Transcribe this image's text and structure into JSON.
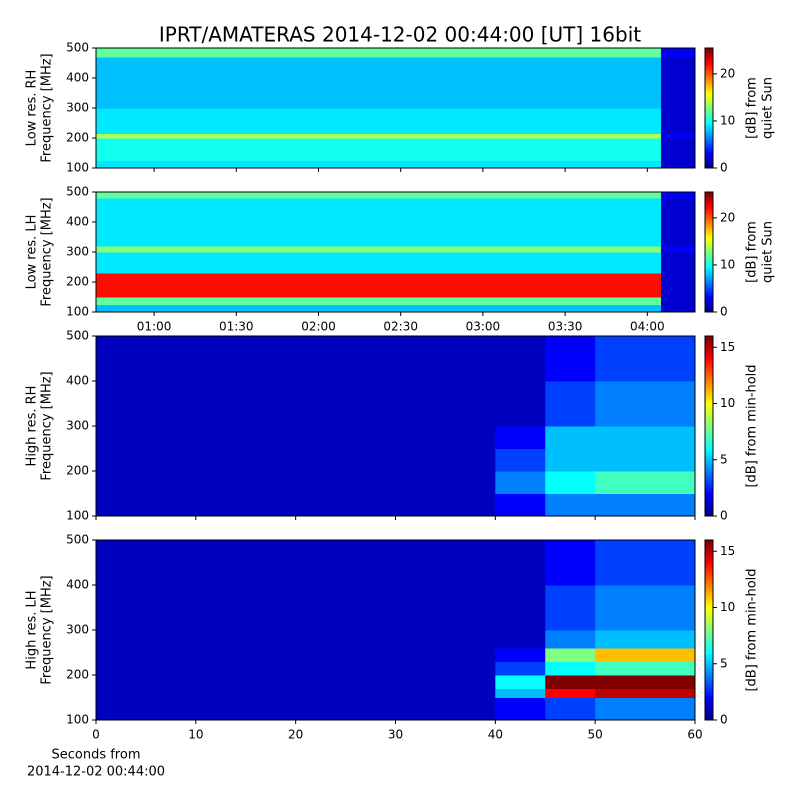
{
  "title": "IPRT/AMATERAS 2014-12-02 00:44:00 [UT]   16bit",
  "xlabel": [
    "Seconds from",
    "2014-12-02 00:44:00"
  ],
  "chart_data": [
    {
      "type": "heatmap",
      "ylabel": [
        "Low res. RH",
        "Frequency [MHz]"
      ],
      "colorbar_label": [
        "[dB] from",
        "quiet Sun"
      ],
      "xlim": [
        38.8,
        257.4
      ],
      "ylim": [
        100,
        500
      ],
      "yticks": [
        100,
        200,
        300,
        400,
        500
      ],
      "clim": [
        0,
        25.5
      ],
      "cticks": [
        0,
        10,
        20
      ],
      "xbins": [
        38.8,
        245,
        257.4
      ],
      "ybins": [
        100,
        125,
        200,
        215,
        300,
        470,
        500
      ],
      "z": [
        [
          9,
          2
        ],
        [
          10,
          2
        ],
        [
          14,
          3
        ],
        [
          9,
          2
        ],
        [
          8,
          2
        ],
        [
          12,
          3
        ]
      ]
    },
    {
      "type": "heatmap",
      "ylabel": [
        "Low res. LH",
        "Frequency [MHz]"
      ],
      "colorbar_label": [
        "[dB] from",
        "quiet Sun"
      ],
      "xlim": [
        38.8,
        257.4
      ],
      "ylim": [
        100,
        500
      ],
      "yticks": [
        100,
        200,
        300,
        400,
        500
      ],
      "xticks": [
        {
          "value": 60,
          "label": "01:00"
        },
        {
          "value": 90,
          "label": "01:30"
        },
        {
          "value": 120,
          "label": "02:00"
        },
        {
          "value": 150,
          "label": "02:30"
        },
        {
          "value": 180,
          "label": "03:00"
        },
        {
          "value": 210,
          "label": "03:30"
        },
        {
          "value": 240,
          "label": "04:00"
        }
      ],
      "clim": [
        0,
        25.5
      ],
      "cticks": [
        0,
        10,
        20
      ],
      "xbins": [
        38.8,
        245,
        257.4
      ],
      "ybins": [
        100,
        125,
        150,
        230,
        300,
        320,
        480,
        500
      ],
      "z": [
        [
          8,
          2
        ],
        [
          12,
          2
        ],
        [
          22,
          2
        ],
        [
          9,
          2
        ],
        [
          13,
          3
        ],
        [
          9,
          2
        ],
        [
          12,
          3
        ]
      ]
    },
    {
      "type": "heatmap",
      "ylabel": [
        "High res. RH",
        "Frequency [MHz]"
      ],
      "colorbar_label": [
        "[dB] from min-hold"
      ],
      "xlim": [
        0,
        60
      ],
      "ylim": [
        100,
        500
      ],
      "yticks": [
        100,
        200,
        300,
        400,
        500
      ],
      "clim": [
        0,
        16
      ],
      "cticks": [
        0,
        5,
        10,
        15
      ],
      "xbins": [
        0,
        20,
        40,
        45,
        50,
        60
      ],
      "ybins": [
        100,
        150,
        200,
        250,
        300,
        400,
        500
      ],
      "z": [
        [
          1,
          1,
          2,
          4,
          4
        ],
        [
          1,
          1,
          4,
          6,
          7
        ],
        [
          1,
          1,
          3,
          5,
          5
        ],
        [
          1,
          1,
          2,
          5,
          5
        ],
        [
          1,
          1,
          1,
          3,
          4
        ],
        [
          1,
          1,
          1,
          2,
          3
        ]
      ]
    },
    {
      "type": "heatmap",
      "ylabel": [
        "High res. LH",
        "Frequency [MHz]"
      ],
      "colorbar_label": [
        "[dB] from min-hold"
      ],
      "xlim": [
        0,
        60
      ],
      "ylim": [
        100,
        500
      ],
      "yticks": [
        100,
        200,
        300,
        400,
        500
      ],
      "xticks": [
        0,
        10,
        20,
        30,
        40,
        50,
        60
      ],
      "clim": [
        0,
        16
      ],
      "cticks": [
        0,
        5,
        10,
        15
      ],
      "xbins": [
        0,
        20,
        40,
        45,
        50,
        60
      ],
      "ybins": [
        100,
        150,
        170,
        200,
        230,
        260,
        300,
        400,
        500
      ],
      "z": [
        [
          1,
          1,
          2,
          3,
          4
        ],
        [
          1,
          1,
          5,
          14,
          15
        ],
        [
          1,
          1,
          6,
          16,
          16
        ],
        [
          1,
          1,
          3,
          6,
          7
        ],
        [
          1,
          1,
          2,
          8,
          11
        ],
        [
          1,
          1,
          1,
          4,
          5
        ],
        [
          1,
          1,
          1,
          3,
          4
        ],
        [
          1,
          1,
          1,
          2,
          3
        ]
      ]
    }
  ]
}
